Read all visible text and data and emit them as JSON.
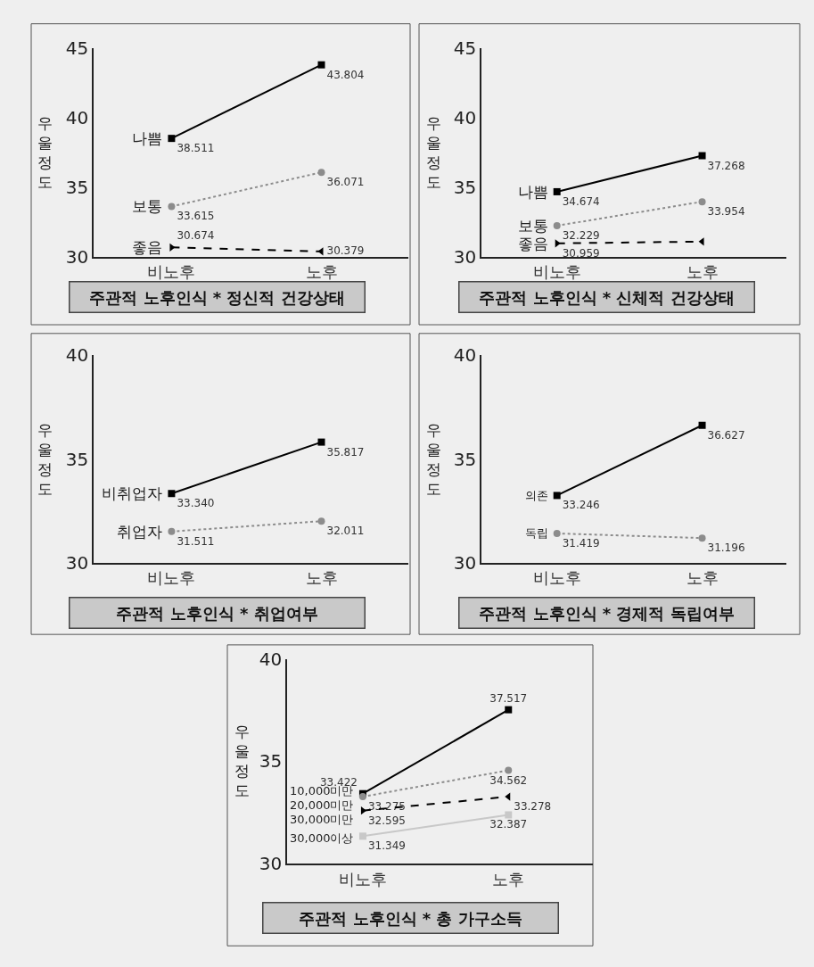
{
  "chart_data": [
    {
      "type": "line",
      "title": "주관적 노후인식 * 정신적 건강상태",
      "ylabel": "우울정도",
      "categories": [
        "비노후",
        "노후"
      ],
      "ylim": [
        30,
        45
      ],
      "yticks": [
        30,
        35,
        40,
        45
      ],
      "series": [
        {
          "name": "나쁨",
          "color": "#000000",
          "values": [
            38.511,
            43.804
          ],
          "value_labels": [
            "38.511",
            "43.804"
          ],
          "marker": "square",
          "line_style": "solid"
        },
        {
          "name": "보통",
          "color": "#8c8c8c",
          "values": [
            33.615,
            36.071
          ],
          "value_labels": [
            "33.615",
            "36.071"
          ],
          "marker": "circle",
          "line_style": "dotted"
        },
        {
          "name": "좋음",
          "color": "#000000",
          "values": [
            30.674,
            30.379
          ],
          "value_labels": [
            "30.674",
            "30.379"
          ],
          "marker": "triangle",
          "line_style": "dashed"
        }
      ]
    },
    {
      "type": "line",
      "title": "주관적 노후인식 * 신체적 건강상태",
      "ylabel": "우울정도",
      "categories": [
        "비노후",
        "노후"
      ],
      "ylim": [
        30,
        45
      ],
      "yticks": [
        30,
        35,
        40,
        45
      ],
      "series": [
        {
          "name": "나쁨",
          "color": "#000000",
          "values": [
            34.674,
            37.268
          ],
          "value_labels": [
            "34.674",
            "37.268"
          ],
          "marker": "square",
          "line_style": "solid"
        },
        {
          "name": "보통",
          "color": "#8c8c8c",
          "values": [
            32.229,
            33.954
          ],
          "value_labels": [
            "32.229",
            "33.954"
          ],
          "marker": "circle",
          "line_style": "dotted"
        },
        {
          "name": "좋음",
          "color": "#000000",
          "values": [
            30.959,
            31.09
          ],
          "value_labels": [
            "30.959",
            null
          ],
          "marker": "triangle",
          "line_style": "dashed"
        }
      ]
    },
    {
      "type": "line",
      "title": "주관적 노후인식 * 취업여부",
      "ylabel": "우울정도",
      "categories": [
        "비노후",
        "노후"
      ],
      "ylim": [
        30,
        40
      ],
      "yticks": [
        30,
        35,
        40
      ],
      "series": [
        {
          "name": "비취업자",
          "color": "#000000",
          "values": [
            33.34,
            35.817
          ],
          "value_labels": [
            "33.340",
            "35.817"
          ],
          "marker": "square",
          "line_style": "solid"
        },
        {
          "name": "취업자",
          "color": "#8c8c8c",
          "values": [
            31.511,
            32.011
          ],
          "value_labels": [
            "31.511",
            "32.011"
          ],
          "marker": "circle",
          "line_style": "dotted"
        }
      ]
    },
    {
      "type": "line",
      "title": "주관적 노후인식 * 경제적 독립여부",
      "ylabel": "우울정도",
      "categories": [
        "비노후",
        "노후"
      ],
      "ylim": [
        30,
        40
      ],
      "yticks": [
        30,
        35,
        40
      ],
      "series": [
        {
          "name": "의존",
          "color": "#000000",
          "values": [
            33.246,
            36.627
          ],
          "value_labels": [
            "33.246",
            "36.627"
          ],
          "marker": "square",
          "line_style": "solid"
        },
        {
          "name": "독립",
          "color": "#8c8c8c",
          "values": [
            31.419,
            31.196
          ],
          "value_labels": [
            "31.419",
            "31.196"
          ],
          "marker": "circle",
          "line_style": "dotted"
        }
      ]
    },
    {
      "type": "line",
      "title": "주관적 노후인식 * 총 가구소득",
      "ylabel": "우울정도",
      "categories": [
        "비노후",
        "노후"
      ],
      "ylim": [
        30,
        40
      ],
      "yticks": [
        30,
        35,
        40
      ],
      "series": [
        {
          "name": "10,000미만",
          "color": "#000000",
          "values": [
            33.422,
            37.517
          ],
          "value_labels": [
            "33.422",
            "37.517"
          ],
          "marker": "square",
          "line_style": "solid"
        },
        {
          "name": "20,000미만",
          "color": "#8c8c8c",
          "values": [
            33.275,
            34.562
          ],
          "value_labels": [
            "33.275",
            "34.562"
          ],
          "marker": "circle",
          "line_style": "dotted"
        },
        {
          "name": "30,000미만",
          "color": "#000000",
          "values": [
            32.595,
            33.278
          ],
          "value_labels": [
            "32.595",
            "33.278"
          ],
          "marker": "triangle",
          "line_style": "dashed"
        },
        {
          "name": "30,000이상",
          "color": "#c8c8c8",
          "values": [
            31.349,
            32.387
          ],
          "value_labels": [
            "31.349",
            "32.387"
          ],
          "marker": "square",
          "line_style": "solid"
        }
      ]
    }
  ]
}
